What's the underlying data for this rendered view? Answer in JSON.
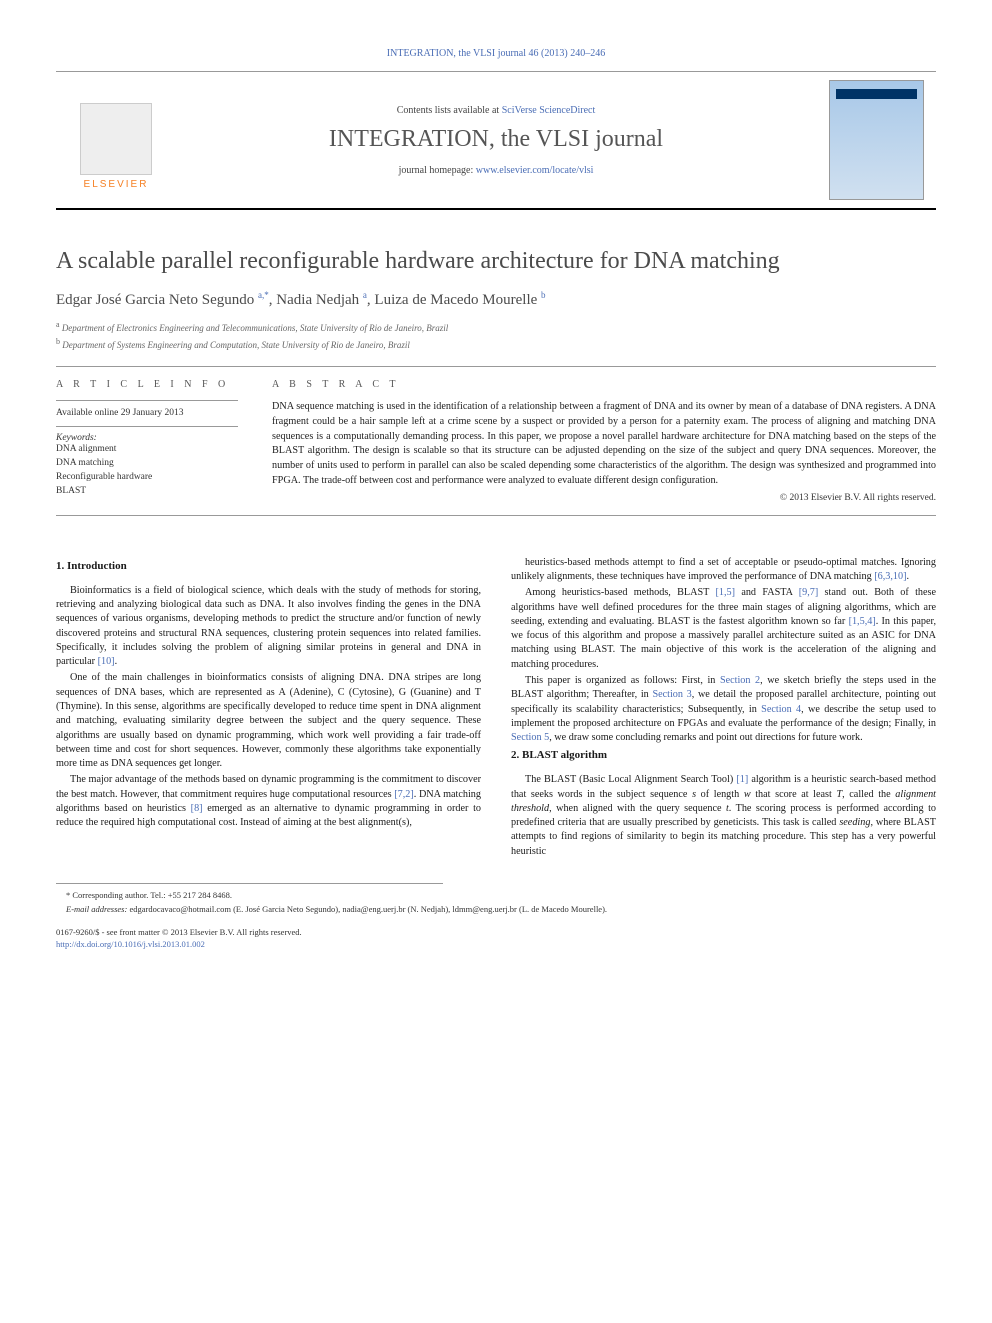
{
  "top_link": {
    "prefix": "",
    "journal": "INTEGRATION, the VLSI journal",
    "vol": "46 (2013) 240–246"
  },
  "masthead": {
    "contents_prefix": "Contents lists available at ",
    "contents_link": "SciVerse ScienceDirect",
    "journal_name": "INTEGRATION, the VLSI journal",
    "homepage_prefix": "journal homepage: ",
    "homepage_link": "www.elsevier.com/locate/vlsi",
    "publisher_name": "ELSEVIER"
  },
  "title": "A scalable parallel reconfigurable hardware architecture for DNA matching",
  "authors_html": "Edgar José Garcia Neto Segundo <sup>a,*</sup>, Nadia Nedjah <sup>a</sup>, Luiza de Macedo Mourelle <sup>b</sup>",
  "affiliations": [
    {
      "marker": "a",
      "text": "Department of Electronics Engineering and Telecommunications, State University of Rio de Janeiro, Brazil"
    },
    {
      "marker": "b",
      "text": "Department of Systems Engineering and Computation, State University of Rio de Janeiro, Brazil"
    }
  ],
  "info": {
    "label": "A R T I C L E   I N F O",
    "history": "Available online 29 January 2013",
    "keywords_head": "Keywords:",
    "keywords": [
      "DNA alignment",
      "DNA matching",
      "Reconfigurable hardware",
      "BLAST"
    ]
  },
  "abstract": {
    "label": "A B S T R A C T",
    "text": "DNA sequence matching is used in the identification of a relationship between a fragment of DNA and its owner by mean of a database of DNA registers. A DNA fragment could be a hair sample left at a crime scene by a suspect or provided by a person for a paternity exam. The process of aligning and matching DNA sequences is a computationally demanding process. In this paper, we propose a novel parallel hardware architecture for DNA matching based on the steps of the BLAST algorithm. The design is scalable so that its structure can be adjusted depending on the size of the subject and query DNA sequences. Moreover, the number of units used to perform in parallel can also be scaled depending some characteristics of the algorithm. The design was synthesized and programmed into FPGA. The trade-off between cost and performance were analyzed to evaluate different design configuration.",
    "copyright": "© 2013 Elsevier B.V. All rights reserved."
  },
  "body": {
    "left": [
      {
        "type": "h2",
        "text": "1. Introduction"
      },
      {
        "type": "p",
        "html": "Bioinformatics is a field of biological science, which deals with the study of methods for storing, retrieving and analyzing biological data such as DNA. It also involves finding the genes in the DNA sequences of various organisms, developing methods to predict the structure and/or function of newly discovered proteins and structural RNA sequences, clustering protein sequences into related families. Specifically, it includes solving the problem of aligning similar proteins in general and DNA in particular <span class='ref'>[10]</span>."
      },
      {
        "type": "p",
        "html": "One of the main challenges in bioinformatics consists of aligning DNA. DNA stripes are long sequences of DNA bases, which are represented as A (Adenine), C (Cytosine), G (Guanine) and T (Thymine). In this sense, algorithms are specifically developed to reduce time spent in DNA alignment and matching, evaluating similarity degree between the subject and the query sequence. These algorithms are usually based on dynamic programming, which work well providing a fair trade-off between time and cost for short sequences. However, commonly these algorithms take exponentially more time as DNA sequences get longer."
      },
      {
        "type": "p",
        "html": "The major advantage of the methods based on dynamic programming is the commitment to discover the best match. However, that commitment requires huge computational resources <span class='ref'>[7,2]</span>. DNA matching algorithms based on heuristics <span class='ref'>[8]</span> emerged as an alternative to dynamic programming in order to reduce the required high computational cost. Instead of aiming at the best alignment(s),"
      }
    ],
    "right": [
      {
        "type": "p",
        "html": "heuristics-based methods attempt to find a set of acceptable or pseudo-optimal matches. Ignoring unlikely alignments, these techniques have improved the performance of DNA matching <span class='ref'>[6,3,10]</span>."
      },
      {
        "type": "p",
        "html": "Among heuristics-based methods, BLAST <span class='ref'>[1,5]</span> and FASTA <span class='ref'>[9,7]</span> stand out. Both of these algorithms have well defined procedures for the three main stages of aligning algorithms, which are seeding, extending and evaluating. BLAST is the fastest algorithm known so far <span class='ref'>[1,5,4]</span>. In this paper, we focus of this algorithm and propose a massively parallel architecture suited as an ASIC for DNA matching using BLAST. The main objective of this work is the acceleration of the aligning and matching procedures."
      },
      {
        "type": "p",
        "html": "This paper is organized as follows: First, in <span class='sec'>Section 2</span>, we sketch briefly the steps used in the BLAST algorithm; Thereafter, in <span class='sec'>Section 3</span>, we detail the proposed parallel architecture, pointing out specifically its scalability characteristics; Subsequently, in <span class='sec'>Section 4</span>, we describe the setup used to implement the proposed architecture on FPGAs and evaluate the performance of the design; Finally, in <span class='sec'>Section 5</span>, we draw some concluding remarks and point out directions for future work."
      },
      {
        "type": "h2",
        "text": "2. BLAST algorithm"
      },
      {
        "type": "p",
        "html": "The BLAST (Basic Local Alignment Search Tool) <span class='ref'>[1]</span> algorithm is a heuristic search-based method that seeks words in the subject sequence <em>s</em> of length <em>w</em> that score at least <em>T</em>, called the <em>alignment threshold</em>, when aligned with the query sequence <em>t</em>. The scoring process is performed according to predefined criteria that are usually prescribed by geneticists. This task is called <em>seeding</em>, where BLAST attempts to find regions of similarity to begin its matching procedure. This step has a very powerful heuristic"
      }
    ]
  },
  "footnotes": {
    "corr": "* Corresponding author. Tel.: +55 217 284 8468.",
    "email_label": "E-mail addresses:",
    "emails": "edgardocavaco@hotmail.com (E. José Garcia Neto Segundo), nadia@eng.uerj.br (N. Nedjah), ldmm@eng.uerj.br (L. de Macedo Mourelle).",
    "issn": "0167-9260/$ - see front matter © 2013 Elsevier B.V. All rights reserved.",
    "doi": "http://dx.doi.org/10.1016/j.vlsi.2013.01.002"
  },
  "colors": {
    "link": "#4a6db5",
    "orange": "#f58025",
    "rule": "#999999"
  }
}
